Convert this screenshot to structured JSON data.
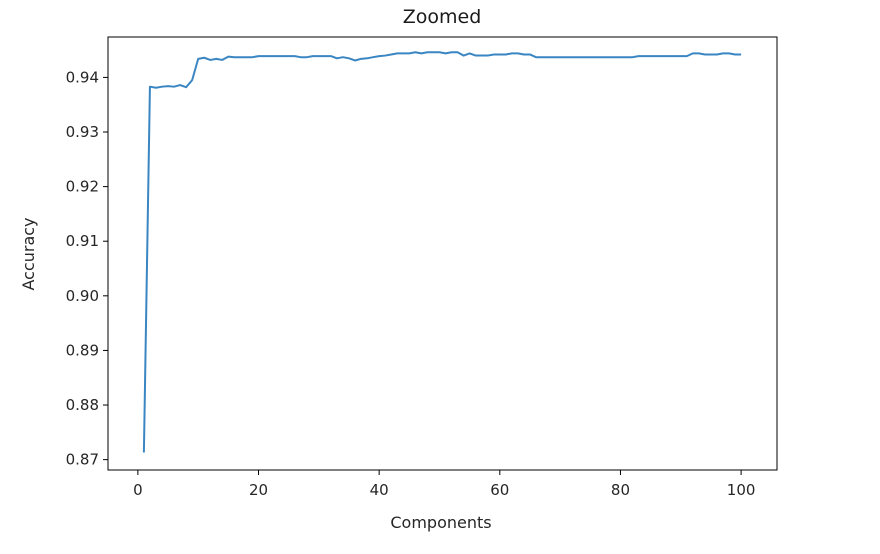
{
  "chart_data": {
    "type": "line",
    "title": "Zoomed",
    "xlabel": "Components",
    "ylabel": "Accuracy",
    "xlim": [
      -4.95,
      105.95
    ],
    "ylim": [
      0.8681,
      0.9474
    ],
    "grid": false,
    "legend": "none",
    "line_color": "#3a86c3",
    "xticks": [
      0,
      20,
      40,
      60,
      80,
      100
    ],
    "xtick_labels": [
      "0",
      "20",
      "40",
      "60",
      "80",
      "100"
    ],
    "yticks": [
      0.87,
      0.88,
      0.89,
      0.9,
      0.91,
      0.92,
      0.93,
      0.94
    ],
    "ytick_labels": [
      "0.87",
      "0.88",
      "0.89",
      "0.90",
      "0.91",
      "0.92",
      "0.93",
      "0.94"
    ],
    "series": [
      {
        "x": [
          1,
          2,
          3,
          4,
          5,
          6,
          7,
          8,
          9,
          10,
          11,
          12,
          13,
          14,
          15,
          16,
          17,
          18,
          19,
          20,
          21,
          22,
          23,
          24,
          25,
          26,
          27,
          28,
          29,
          30,
          31,
          32,
          33,
          34,
          35,
          36,
          37,
          38,
          39,
          40,
          41,
          42,
          43,
          44,
          45,
          46,
          47,
          48,
          49,
          50,
          51,
          52,
          53,
          54,
          55,
          56,
          57,
          58,
          59,
          60,
          61,
          62,
          63,
          64,
          65,
          66,
          67,
          68,
          69,
          70,
          71,
          72,
          73,
          74,
          75,
          76,
          77,
          78,
          79,
          80,
          81,
          82,
          83,
          84,
          85,
          86,
          87,
          88,
          89,
          90,
          91,
          92,
          93,
          94,
          95,
          96,
          97,
          98,
          99,
          100
        ],
        "y": [
          0.8713,
          0.9383,
          0.9381,
          0.9383,
          0.9384,
          0.9383,
          0.9386,
          0.9382,
          0.9395,
          0.9434,
          0.9436,
          0.9432,
          0.9434,
          0.9432,
          0.9438,
          0.9437,
          0.9437,
          0.9437,
          0.9437,
          0.9439,
          0.9439,
          0.9439,
          0.9439,
          0.9439,
          0.9439,
          0.9439,
          0.9437,
          0.9437,
          0.9439,
          0.9439,
          0.9439,
          0.9439,
          0.9435,
          0.9437,
          0.9435,
          0.9431,
          0.9434,
          0.9435,
          0.9437,
          0.9439,
          0.944,
          0.9442,
          0.9444,
          0.9444,
          0.9444,
          0.9446,
          0.9444,
          0.9446,
          0.9446,
          0.9446,
          0.9444,
          0.9446,
          0.9446,
          0.944,
          0.9444,
          0.944,
          0.944,
          0.944,
          0.9442,
          0.9442,
          0.9442,
          0.9444,
          0.9444,
          0.9442,
          0.9442,
          0.9437,
          0.9437,
          0.9437,
          0.9437,
          0.9437,
          0.9437,
          0.9437,
          0.9437,
          0.9437,
          0.9437,
          0.9437,
          0.9437,
          0.9437,
          0.9437,
          0.9437,
          0.9437,
          0.9437,
          0.9439,
          0.9439,
          0.9439,
          0.9439,
          0.9439,
          0.9439,
          0.9439,
          0.9439,
          0.9439,
          0.9444,
          0.9444,
          0.9442,
          0.9442,
          0.9442,
          0.9444,
          0.9444,
          0.9442,
          0.9442
        ]
      }
    ]
  }
}
